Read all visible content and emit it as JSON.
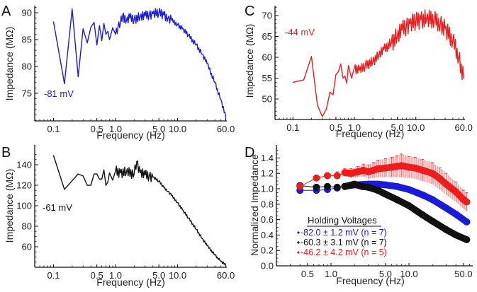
{
  "chart_data": [
    {
      "panel": "A",
      "type": "line",
      "title": "",
      "xlabel": "Frequency (Hz)",
      "ylabel": "Impedance (MΩ)",
      "xscale": "log",
      "xlim": [
        0.1,
        60.0
      ],
      "ylim": [
        70,
        91
      ],
      "xticks": [
        "0.1",
        "0.5",
        "1.0",
        "5.0",
        "10.0",
        "60.0"
      ],
      "xtick_values": [
        0.1,
        0.5,
        1.0,
        5.0,
        10.0,
        60.0
      ],
      "yticks": [
        "75",
        "80",
        "85",
        "90"
      ],
      "ytick_values": [
        75,
        80,
        85,
        90
      ],
      "annotation": "-81 mV",
      "color": "#1a1adb",
      "series": [
        {
          "name": "-81 mV",
          "x": [
            0.1,
            0.15,
            0.2,
            0.25,
            0.3,
            0.35,
            0.4,
            0.45,
            0.5,
            0.55,
            0.6,
            0.65,
            0.7,
            0.75,
            0.8,
            0.9,
            1.0,
            1.1,
            1.2,
            1.3,
            1.5,
            1.7,
            2.0,
            2.5,
            3.0,
            3.5,
            4.0,
            5.0,
            6.0,
            7.0,
            8.0,
            10.0,
            12.0,
            15.0,
            20.0,
            25.0,
            30.0,
            40.0,
            50.0,
            60.0
          ],
          "y": [
            88.3,
            76.8,
            90.7,
            78.1,
            87.0,
            84.4,
            87.3,
            88.2,
            84.0,
            87.6,
            84.8,
            88.0,
            86.0,
            86.5,
            85.0,
            87.2,
            86.0,
            87.5,
            88.0,
            89.5,
            88.5,
            89.0,
            88.8,
            89.2,
            89.4,
            89.6,
            89.8,
            90.0,
            89.6,
            89.0,
            88.6,
            87.8,
            87.0,
            85.8,
            84.0,
            82.3,
            80.5,
            77.0,
            73.8,
            70.5
          ]
        }
      ]
    },
    {
      "panel": "B",
      "type": "line",
      "title": "",
      "xlabel": "Frequency (Hz)",
      "ylabel": "Impedance (MΩ)",
      "xscale": "log",
      "xlim": [
        0.1,
        60.0
      ],
      "ylim": [
        40,
        150
      ],
      "xticks": [
        "0.1",
        "0.5",
        "1.0",
        "5.0",
        "10.0",
        "60.0"
      ],
      "xtick_values": [
        0.1,
        0.5,
        1.0,
        5.0,
        10.0,
        60.0
      ],
      "yticks": [
        "60",
        "80",
        "100",
        "120",
        "140"
      ],
      "ytick_values": [
        60,
        80,
        100,
        120,
        140
      ],
      "annotation": "-61 mV",
      "color": "#111111",
      "series": [
        {
          "name": "-61 mV",
          "x": [
            0.1,
            0.15,
            0.25,
            0.3,
            0.35,
            0.4,
            0.45,
            0.5,
            0.55,
            0.6,
            0.65,
            0.7,
            0.75,
            0.8,
            0.9,
            1.0,
            1.2,
            1.5,
            2.0,
            2.2,
            2.5,
            3.0,
            3.5,
            4.0,
            5.0,
            6.0,
            7.0,
            8.0,
            10.0,
            12.0,
            15.0,
            20.0,
            25.0,
            30.0,
            40.0,
            50.0,
            60.0
          ],
          "y": [
            149,
            116,
            131,
            129,
            120,
            120,
            131,
            131,
            126,
            126,
            135,
            120,
            123,
            132,
            125,
            134,
            132,
            133,
            131,
            143,
            132,
            130,
            129,
            128,
            124,
            118,
            114,
            110,
            103,
            96,
            88,
            77,
            68,
            61,
            52,
            46,
            42
          ]
        }
      ]
    },
    {
      "panel": "C",
      "type": "line",
      "title": "",
      "xlabel": "Frequency (Hz)",
      "ylabel": "Impedance (MΩ)",
      "xscale": "log",
      "xlim": [
        0.1,
        60.0
      ],
      "ylim": [
        45,
        72
      ],
      "xticks": [
        "0.1",
        "0.5",
        "1.0",
        "5.0",
        "10.0",
        "60.0"
      ],
      "xtick_values": [
        0.1,
        0.5,
        1.0,
        5.0,
        10.0,
        60.0
      ],
      "yticks": [
        "50",
        "55",
        "60",
        "65",
        "70"
      ],
      "ytick_values": [
        50,
        55,
        60,
        65,
        70
      ],
      "annotation": "-44 mV",
      "color": "#ee1c1c",
      "series": [
        {
          "name": "-44 mV",
          "x": [
            0.1,
            0.15,
            0.2,
            0.25,
            0.3,
            0.35,
            0.4,
            0.45,
            0.5,
            0.55,
            0.6,
            0.65,
            0.7,
            0.75,
            0.8,
            0.9,
            1.0,
            1.2,
            1.5,
            2.0,
            2.5,
            3.0,
            4.0,
            5.0,
            6.0,
            7.0,
            8.0,
            10.0,
            12.0,
            15.0,
            20.0,
            25.0,
            30.0,
            40.0,
            50.0,
            60.0
          ],
          "y": [
            54.0,
            54.6,
            60.2,
            48.6,
            45.8,
            47.6,
            51.6,
            51.0,
            55.8,
            56.6,
            58.4,
            55.0,
            55.5,
            53.8,
            58.0,
            55.0,
            57.5,
            56.8,
            58.0,
            59.0,
            60.5,
            61.8,
            63.5,
            65.0,
            66.5,
            67.5,
            68.0,
            68.6,
            69.0,
            69.3,
            69.0,
            68.0,
            66.8,
            64.0,
            60.0,
            55.0
          ]
        }
      ]
    },
    {
      "panel": "D",
      "type": "scatter",
      "title": "",
      "xlabel": "Frequency (Hz)",
      "ylabel": "Normalized Impedance",
      "xscale": "log",
      "xlim": [
        0.2,
        60.0
      ],
      "ylim": [
        0.0,
        1.5
      ],
      "xticks": [
        "0.5",
        "1.0",
        "5.0",
        "10.0",
        "50.0"
      ],
      "xtick_values": [
        0.5,
        1.0,
        5.0,
        10.0,
        50.0
      ],
      "yticks": [
        "0.0",
        "0.2",
        "0.4",
        "0.6",
        "0.8",
        "1.0",
        "1.2",
        "1.4"
      ],
      "ytick_values": [
        0.0,
        0.2,
        0.4,
        0.6,
        0.8,
        1.0,
        1.2,
        1.4
      ],
      "legend_title": "Holding Voltages",
      "legend_position": "bottom-left",
      "series": [
        {
          "name": "-82.0 ± 1.2 mV (n = 7)",
          "color": "#1a1adb",
          "x": [
            0.4,
            0.65,
            0.9,
            1.2,
            1.5,
            2.0,
            3.0,
            4.0,
            5.0,
            7.0,
            10.0,
            15.0,
            20.0,
            30.0,
            40.0,
            55.0
          ],
          "y": [
            0.98,
            0.98,
            0.99,
            1.01,
            1.03,
            1.05,
            1.06,
            1.06,
            1.05,
            1.03,
            0.99,
            0.92,
            0.86,
            0.75,
            0.67,
            0.57
          ],
          "err": [
            0.01,
            0.01,
            0.01,
            0.01,
            0.01,
            0.01,
            0.01,
            0.01,
            0.01,
            0.01,
            0.01,
            0.01,
            0.01,
            0.01,
            0.01,
            0.01
          ]
        },
        {
          "name": "-60.3 ± 3.1 mV (n = 7)",
          "color": "#111111",
          "x": [
            0.4,
            0.65,
            0.9,
            1.2,
            1.5,
            2.0,
            2.5,
            3.0,
            4.0,
            5.0,
            7.0,
            10.0,
            15.0,
            20.0,
            30.0,
            40.0,
            55.0
          ],
          "y": [
            1.04,
            1.02,
            1.03,
            1.02,
            1.03,
            1.06,
            1.03,
            1.02,
            0.98,
            0.93,
            0.86,
            0.78,
            0.66,
            0.58,
            0.47,
            0.4,
            0.34
          ],
          "err": [
            0.02,
            0.02,
            0.02,
            0.02,
            0.02,
            0.02,
            0.02,
            0.02,
            0.02,
            0.02,
            0.02,
            0.02,
            0.02,
            0.02,
            0.02,
            0.02,
            0.02
          ]
        },
        {
          "name": "-46.2 ± 4.2 mV (n = 5)",
          "color": "#ee1c1c",
          "x": [
            0.4,
            0.65,
            0.9,
            1.2,
            1.5,
            1.8,
            2.2,
            2.6,
            3.0,
            3.5,
            4.0,
            5.0,
            6.0,
            7.0,
            8.0,
            10.0,
            12.0,
            15.0,
            20.0,
            25.0,
            30.0,
            40.0,
            50.0,
            55.0
          ],
          "y": [
            1.03,
            1.14,
            1.17,
            1.17,
            1.21,
            1.2,
            1.22,
            1.24,
            1.22,
            1.24,
            1.26,
            1.27,
            1.28,
            1.29,
            1.3,
            1.28,
            1.27,
            1.24,
            1.2,
            1.13,
            1.06,
            0.96,
            0.86,
            0.83
          ],
          "err": [
            0.02,
            0.02,
            0.04,
            0.05,
            0.05,
            0.06,
            0.07,
            0.08,
            0.09,
            0.1,
            0.11,
            0.12,
            0.13,
            0.14,
            0.15,
            0.14,
            0.14,
            0.14,
            0.14,
            0.14,
            0.14,
            0.13,
            0.12,
            0.12
          ]
        }
      ]
    }
  ]
}
